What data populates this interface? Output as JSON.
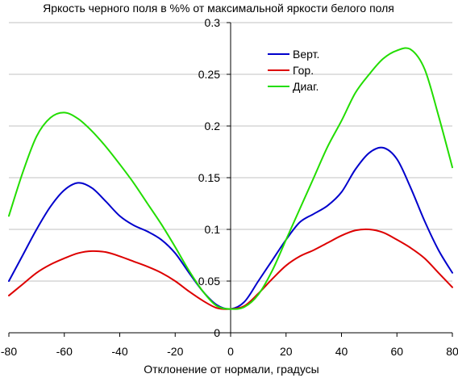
{
  "chart_data": {
    "type": "line",
    "title": "Яркость черного поля в %% от максимальной яркости белого поля",
    "xlabel": "Отклонение от нормали, градусы",
    "ylabel": "",
    "xlim": [
      -80,
      80
    ],
    "ylim": [
      0,
      0.3
    ],
    "x_ticks": [
      "-80",
      "-60",
      "-40",
      "-20",
      "0",
      "20",
      "40",
      "60",
      "80"
    ],
    "y_ticks": [
      "0",
      "0.05",
      "0.1",
      "0.15",
      "0.2",
      "0.25",
      "0.3"
    ],
    "grid": "horizontal",
    "legend_position": "top-right",
    "series": [
      {
        "name": "Верт.",
        "color": "#0000cc",
        "points": [
          [
            -80,
            0.05
          ],
          [
            -75,
            0.075
          ],
          [
            -70,
            0.1
          ],
          [
            -65,
            0.122
          ],
          [
            -60,
            0.138
          ],
          [
            -55,
            0.145
          ],
          [
            -50,
            0.14
          ],
          [
            -45,
            0.127
          ],
          [
            -40,
            0.113
          ],
          [
            -35,
            0.104
          ],
          [
            -30,
            0.098
          ],
          [
            -25,
            0.09
          ],
          [
            -20,
            0.077
          ],
          [
            -15,
            0.058
          ],
          [
            -10,
            0.04
          ],
          [
            -5,
            0.027
          ],
          [
            0,
            0.023
          ],
          [
            5,
            0.03
          ],
          [
            10,
            0.05
          ],
          [
            15,
            0.07
          ],
          [
            20,
            0.09
          ],
          [
            25,
            0.107
          ],
          [
            30,
            0.115
          ],
          [
            35,
            0.123
          ],
          [
            40,
            0.136
          ],
          [
            45,
            0.158
          ],
          [
            50,
            0.174
          ],
          [
            55,
            0.179
          ],
          [
            60,
            0.168
          ],
          [
            65,
            0.14
          ],
          [
            70,
            0.108
          ],
          [
            75,
            0.08
          ],
          [
            80,
            0.058
          ]
        ]
      },
      {
        "name": "Гор.",
        "color": "#dd0000",
        "points": [
          [
            -80,
            0.036
          ],
          [
            -75,
            0.047
          ],
          [
            -70,
            0.058
          ],
          [
            -65,
            0.066
          ],
          [
            -60,
            0.072
          ],
          [
            -55,
            0.077
          ],
          [
            -50,
            0.079
          ],
          [
            -45,
            0.078
          ],
          [
            -40,
            0.074
          ],
          [
            -35,
            0.069
          ],
          [
            -30,
            0.064
          ],
          [
            -25,
            0.058
          ],
          [
            -20,
            0.05
          ],
          [
            -15,
            0.04
          ],
          [
            -10,
            0.031
          ],
          [
            -5,
            0.024
          ],
          [
            0,
            0.023
          ],
          [
            5,
            0.026
          ],
          [
            10,
            0.038
          ],
          [
            15,
            0.052
          ],
          [
            20,
            0.065
          ],
          [
            25,
            0.074
          ],
          [
            30,
            0.08
          ],
          [
            35,
            0.087
          ],
          [
            40,
            0.094
          ],
          [
            45,
            0.099
          ],
          [
            50,
            0.1
          ],
          [
            55,
            0.097
          ],
          [
            60,
            0.09
          ],
          [
            65,
            0.082
          ],
          [
            70,
            0.072
          ],
          [
            75,
            0.058
          ],
          [
            80,
            0.044
          ]
        ]
      },
      {
        "name": "Диаг.",
        "color": "#22dd00",
        "points": [
          [
            -80,
            0.113
          ],
          [
            -75,
            0.155
          ],
          [
            -70,
            0.19
          ],
          [
            -65,
            0.208
          ],
          [
            -60,
            0.213
          ],
          [
            -55,
            0.207
          ],
          [
            -50,
            0.195
          ],
          [
            -45,
            0.18
          ],
          [
            -40,
            0.163
          ],
          [
            -35,
            0.145
          ],
          [
            -30,
            0.125
          ],
          [
            -25,
            0.105
          ],
          [
            -20,
            0.083
          ],
          [
            -15,
            0.06
          ],
          [
            -10,
            0.04
          ],
          [
            -5,
            0.026
          ],
          [
            0,
            0.023
          ],
          [
            5,
            0.025
          ],
          [
            10,
            0.037
          ],
          [
            15,
            0.06
          ],
          [
            20,
            0.09
          ],
          [
            25,
            0.12
          ],
          [
            30,
            0.15
          ],
          [
            35,
            0.18
          ],
          [
            40,
            0.205
          ],
          [
            45,
            0.232
          ],
          [
            50,
            0.25
          ],
          [
            55,
            0.265
          ],
          [
            60,
            0.273
          ],
          [
            65,
            0.274
          ],
          [
            70,
            0.255
          ],
          [
            75,
            0.21
          ],
          [
            80,
            0.16
          ]
        ]
      }
    ]
  }
}
